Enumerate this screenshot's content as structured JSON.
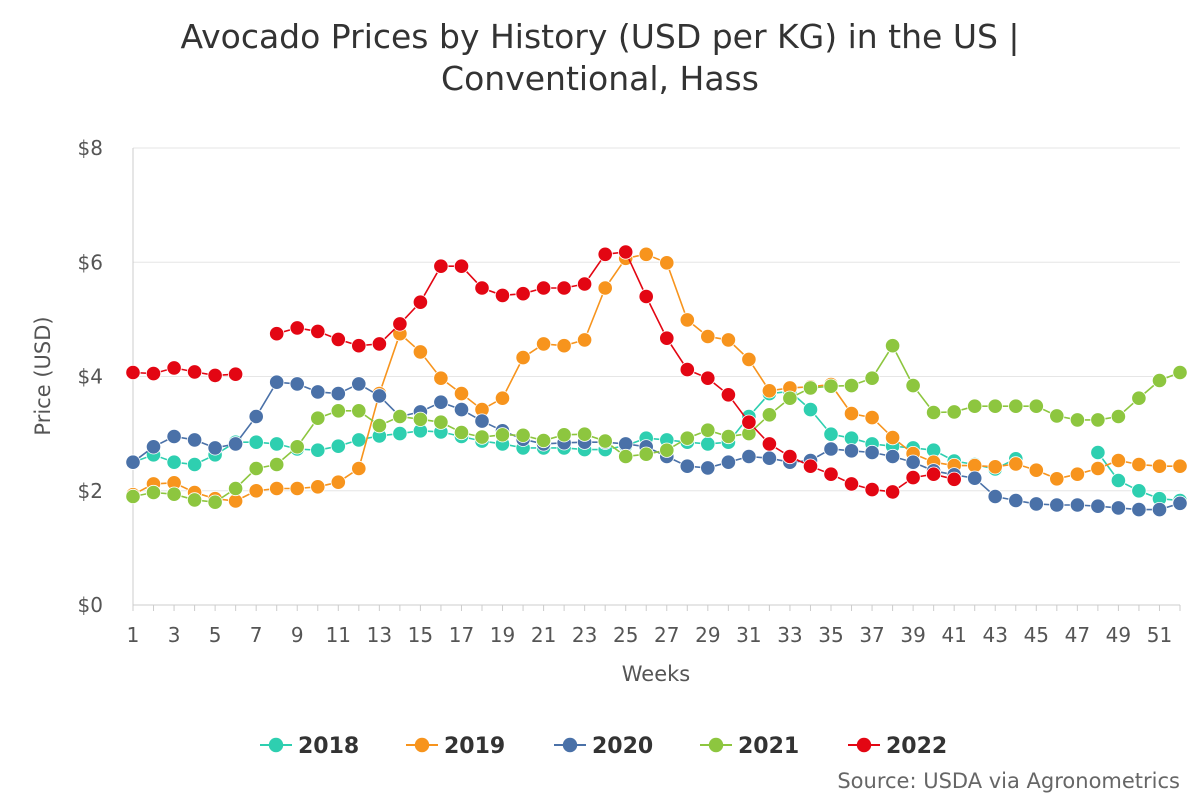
{
  "chart_data": {
    "type": "line",
    "title_lines": [
      "Avocado Prices by History (USD per KG) in the US |",
      "Conventional, Hass"
    ],
    "xlabel": "Weeks",
    "ylabel": "Price (USD)",
    "xlim": [
      1,
      52
    ],
    "ylim": [
      0,
      8
    ],
    "x_ticks": [
      1,
      3,
      5,
      7,
      9,
      11,
      13,
      15,
      17,
      19,
      21,
      23,
      25,
      27,
      29,
      31,
      33,
      35,
      37,
      39,
      41,
      43,
      45,
      47,
      49,
      51
    ],
    "y_ticks": [
      0,
      2,
      4,
      6,
      8
    ],
    "y_tick_labels": [
      "$0",
      "$2",
      "$4",
      "$6",
      "$8"
    ],
    "x": [
      1,
      2,
      3,
      4,
      5,
      6,
      7,
      8,
      9,
      10,
      11,
      12,
      13,
      14,
      15,
      16,
      17,
      18,
      19,
      20,
      21,
      22,
      23,
      24,
      25,
      26,
      27,
      28,
      29,
      30,
      31,
      32,
      33,
      34,
      35,
      36,
      37,
      38,
      39,
      40,
      41,
      42,
      43,
      44,
      45,
      46,
      47,
      48,
      49,
      50,
      51,
      52
    ],
    "series": [
      {
        "name": "2018",
        "color": "#2ecfb0",
        "values": [
          2.5,
          2.63,
          2.5,
          2.46,
          2.63,
          2.85,
          2.85,
          2.82,
          2.73,
          2.71,
          2.78,
          2.89,
          2.96,
          3.0,
          3.05,
          3.03,
          2.95,
          2.87,
          2.82,
          2.75,
          2.75,
          2.75,
          2.72,
          2.72,
          2.79,
          2.92,
          2.89,
          2.85,
          2.82,
          2.85,
          3.3,
          3.7,
          3.74,
          3.42,
          2.99,
          2.92,
          2.82,
          2.78,
          2.75,
          2.71,
          2.52,
          2.46,
          2.38,
          2.56,
          null,
          null,
          null,
          2.67,
          2.18,
          2.0,
          1.86,
          1.83
        ]
      },
      {
        "name": "2019",
        "color": "#f7941d",
        "values": [
          1.93,
          2.12,
          2.14,
          1.97,
          1.86,
          1.82,
          2.0,
          2.04,
          2.04,
          2.07,
          2.15,
          2.39,
          3.7,
          4.75,
          4.43,
          3.97,
          3.7,
          3.42,
          3.62,
          4.33,
          4.57,
          4.54,
          4.64,
          5.55,
          6.07,
          6.14,
          5.99,
          4.99,
          4.7,
          4.64,
          4.3,
          3.75,
          3.8,
          3.82,
          3.86,
          3.35,
          3.28,
          2.93,
          2.65,
          2.5,
          2.44,
          2.44,
          2.42,
          2.47,
          2.36,
          2.21,
          2.29,
          2.39,
          2.53,
          2.46,
          2.43,
          2.43
        ]
      },
      {
        "name": "2020",
        "color": "#4a71a8",
        "values": [
          2.5,
          2.77,
          2.95,
          2.89,
          2.75,
          2.82,
          3.3,
          3.9,
          3.87,
          3.73,
          3.7,
          3.87,
          3.66,
          3.3,
          3.38,
          3.55,
          3.42,
          3.22,
          3.05,
          2.9,
          2.82,
          2.84,
          2.85,
          2.85,
          2.82,
          2.77,
          2.6,
          2.43,
          2.4,
          2.5,
          2.6,
          2.57,
          2.5,
          2.53,
          2.73,
          2.7,
          2.67,
          2.6,
          2.5,
          2.35,
          2.28,
          2.22,
          1.9,
          1.83,
          1.77,
          1.75,
          1.75,
          1.73,
          1.7,
          1.67,
          1.67,
          1.78
        ]
      },
      {
        "name": "2021",
        "color": "#8dc63f",
        "values": [
          1.9,
          1.97,
          1.94,
          1.84,
          1.8,
          2.04,
          2.39,
          2.46,
          2.77,
          3.27,
          3.4,
          3.4,
          3.14,
          3.3,
          3.25,
          3.2,
          3.02,
          2.94,
          2.98,
          2.97,
          2.88,
          2.98,
          2.99,
          2.87,
          2.6,
          2.64,
          2.71,
          2.92,
          3.06,
          2.95,
          3.0,
          3.33,
          3.62,
          3.8,
          3.83,
          3.84,
          3.97,
          4.54,
          3.84,
          3.37,
          3.38,
          3.48,
          3.48,
          3.48,
          3.48,
          3.31,
          3.24,
          3.24,
          3.3,
          3.62,
          3.93,
          4.07
        ]
      },
      {
        "name": "2022",
        "color": "#e30613",
        "values": [
          4.07,
          4.05,
          4.15,
          4.08,
          4.02,
          4.04,
          null,
          4.75,
          4.85,
          4.79,
          4.65,
          4.54,
          4.57,
          4.92,
          5.3,
          5.93,
          5.93,
          5.55,
          5.42,
          5.45,
          5.55,
          5.55,
          5.62,
          6.14,
          6.18,
          5.4,
          4.67,
          4.12,
          3.97,
          3.68,
          3.2,
          2.82,
          2.6,
          2.43,
          2.29,
          2.12,
          2.02,
          1.98,
          2.23,
          2.29,
          2.2,
          null,
          null,
          null,
          null,
          null,
          null,
          null,
          null,
          null,
          null,
          null
        ]
      }
    ],
    "legend_position": "bottom",
    "source_note": "Source: USDA via Agronometrics"
  }
}
